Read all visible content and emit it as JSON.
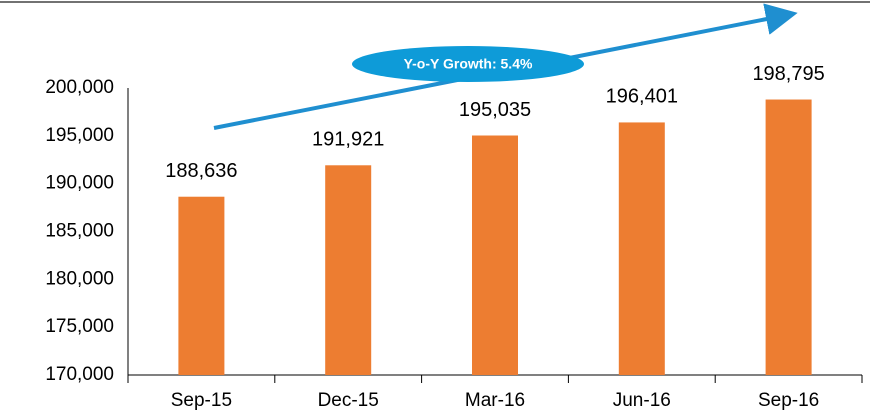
{
  "chart_data": {
    "type": "bar",
    "categories": [
      "Sep-15",
      "Dec-15",
      "Mar-16",
      "Jun-16",
      "Sep-16"
    ],
    "values": [
      188636,
      191921,
      195035,
      196401,
      198795
    ],
    "value_labels": [
      "188,636",
      "191,921",
      "195,035",
      "196,401",
      "198,795"
    ],
    "color": "#ed7d31",
    "ylim": [
      170000,
      200000
    ],
    "yticks": [
      {
        "value": 170000,
        "label": "170,000"
      },
      {
        "value": 175000,
        "label": "175,000"
      },
      {
        "value": 180000,
        "label": "180,000"
      },
      {
        "value": 185000,
        "label": "185,000"
      },
      {
        "value": 190000,
        "label": "190,000"
      },
      {
        "value": 195000,
        "label": "195,000"
      },
      {
        "value": 200000,
        "label": "200,000"
      }
    ],
    "grid": false,
    "annotation": "Y-o-Y Growth: 5.4%"
  }
}
